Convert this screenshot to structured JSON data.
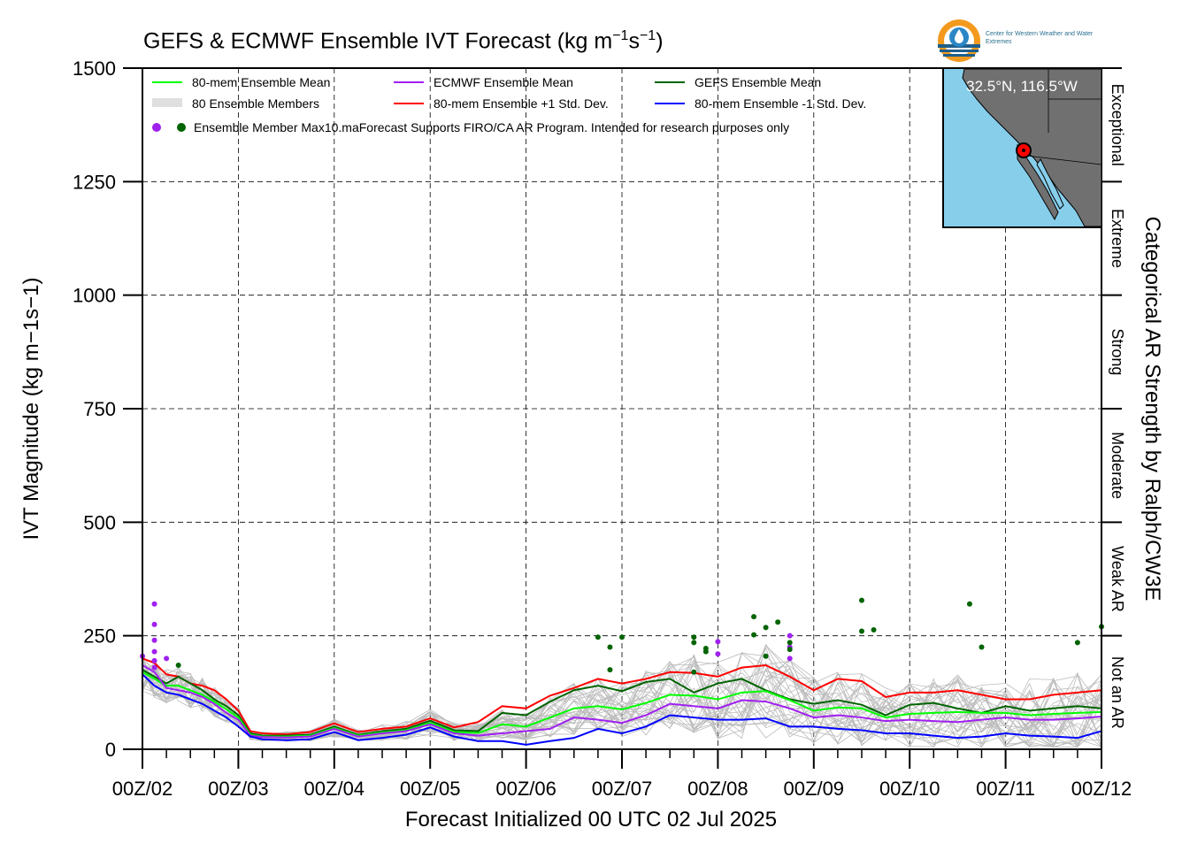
{
  "title_main": "GEFS & ECMWF Ensemble IVT Forecast (kg m",
  "title_sup1": "−1",
  "title_mid": "s",
  "title_sup2": "−1",
  "title_end": ")",
  "ylabel": "IVT Magnitude (kg m−1s−1)",
  "xlabel": "Forecast Initialized 00 UTC 02 Jul 2025",
  "right_label": "Categorical AR Strength by Ralph/CW3E",
  "logo_text": "Center for Western Weather and Water Extremes",
  "inset_location": "32.5°N, 116.5°W",
  "legend": {
    "mean80": "80-mem Ensemble Mean",
    "ecmwf_mean": "ECMWF Ensemble Mean",
    "gefs_mean": "GEFS Ensemble Mean",
    "members": "80 Ensemble Members",
    "plus1": "80-mem Ensemble +1 Std. Dev.",
    "minus1": "80-mem Ensemble -1 Std. Dev.",
    "max_label": "Ensemble Member Max",
    "note": "10.maForecast Supports FIRO/CA AR Program. Intended for research purposes only"
  },
  "colors": {
    "mean80": "#00ff00",
    "ecmwf": "#a020f0",
    "gefs": "#006400",
    "plus1": "#ff0000",
    "minus1": "#0000ff",
    "members": "#bbbbbb",
    "inset_ocean": "#87ceeb",
    "inset_land": "#707070"
  },
  "chart_data": {
    "type": "line",
    "title": "GEFS & ECMWF Ensemble IVT Forecast (kg m−1s−1)",
    "xlabel": "Forecast Initialized 00 UTC 02 Jul 2025",
    "ylabel": "IVT Magnitude (kg m−1s−1)",
    "ylim": [
      0,
      1500
    ],
    "xlim": [
      0,
      10
    ],
    "x_unit": "days since 00Z/02",
    "x_tick_labels": [
      "00Z/02",
      "00Z/03",
      "00Z/04",
      "00Z/05",
      "00Z/06",
      "00Z/07",
      "00Z/08",
      "00Z/09",
      "00Z/10",
      "00Z/11",
      "00Z/12"
    ],
    "y_ticks": [
      0,
      250,
      500,
      750,
      1000,
      1250,
      1500
    ],
    "grid": true,
    "legend_position": "top-left",
    "categories": [
      {
        "name": "Not an AR",
        "range": [
          0,
          250
        ]
      },
      {
        "name": "Weak AR",
        "range": [
          250,
          500
        ]
      },
      {
        "name": "Moderate",
        "range": [
          500,
          750
        ]
      },
      {
        "name": "Strong",
        "range": [
          750,
          1000
        ]
      },
      {
        "name": "Extreme",
        "range": [
          1000,
          1250
        ]
      },
      {
        "name": "Exceptional",
        "range": [
          1250,
          1500
        ]
      }
    ],
    "series": [
      {
        "name": "80-mem Ensemble +1 Std. Dev.",
        "color": "#ff0000",
        "x": [
          0,
          0.125,
          0.25,
          0.375,
          0.5,
          0.625,
          0.75,
          0.875,
          1,
          1.125,
          1.25,
          1.5,
          1.75,
          2,
          2.25,
          2.5,
          2.75,
          3,
          3.25,
          3.5,
          3.75,
          4,
          4.25,
          4.5,
          4.75,
          5,
          5.25,
          5.5,
          5.75,
          6,
          6.25,
          6.5,
          6.75,
          7,
          7.25,
          7.5,
          7.75,
          8,
          8.25,
          8.5,
          8.75,
          9,
          9.25,
          9.5,
          9.75,
          10
        ],
        "y": [
          200,
          190,
          165,
          160,
          145,
          140,
          130,
          110,
          85,
          40,
          35,
          33,
          38,
          57,
          38,
          45,
          50,
          68,
          48,
          60,
          95,
          90,
          118,
          135,
          155,
          145,
          155,
          170,
          168,
          160,
          180,
          185,
          160,
          130,
          155,
          150,
          115,
          125,
          125,
          130,
          120,
          110,
          110,
          120,
          125,
          130
        ]
      },
      {
        "name": "GEFS Ensemble Mean",
        "color": "#006400",
        "x": [
          0,
          0.125,
          0.25,
          0.375,
          0.5,
          0.625,
          0.75,
          0.875,
          1,
          1.125,
          1.25,
          1.5,
          1.75,
          2,
          2.25,
          2.5,
          2.75,
          3,
          3.25,
          3.5,
          3.75,
          4,
          4.25,
          4.5,
          4.75,
          5,
          5.25,
          5.5,
          5.75,
          6,
          6.25,
          6.5,
          6.75,
          7,
          7.25,
          7.5,
          7.75,
          8,
          8.25,
          8.5,
          8.75,
          9,
          9.25,
          9.5,
          9.75,
          10
        ],
        "y": [
          175,
          160,
          145,
          160,
          145,
          130,
          110,
          95,
          75,
          35,
          30,
          30,
          32,
          50,
          32,
          40,
          45,
          63,
          42,
          40,
          80,
          75,
          105,
          130,
          140,
          128,
          148,
          155,
          125,
          145,
          155,
          130,
          110,
          100,
          108,
          98,
          75,
          98,
          102,
          90,
          80,
          95,
          85,
          90,
          95,
          90
        ]
      },
      {
        "name": "80-mem Ensemble Mean",
        "color": "#00ff00",
        "x": [
          0,
          0.125,
          0.25,
          0.375,
          0.5,
          0.625,
          0.75,
          0.875,
          1,
          1.125,
          1.25,
          1.5,
          1.75,
          2,
          2.25,
          2.5,
          2.75,
          3,
          3.25,
          3.5,
          3.75,
          4,
          4.25,
          4.5,
          4.75,
          5,
          5.25,
          5.5,
          5.75,
          6,
          6.25,
          6.5,
          6.75,
          7,
          7.25,
          7.5,
          7.75,
          8,
          8.25,
          8.5,
          8.75,
          9,
          9.25,
          9.5,
          9.75,
          10
        ],
        "y": [
          170,
          155,
          140,
          140,
          130,
          120,
          105,
          88,
          70,
          32,
          28,
          28,
          30,
          47,
          30,
          37,
          42,
          58,
          38,
          36,
          55,
          50,
          70,
          90,
          95,
          88,
          102,
          120,
          118,
          110,
          125,
          128,
          108,
          85,
          92,
          90,
          70,
          78,
          80,
          82,
          80,
          80,
          75,
          78,
          80,
          82
        ]
      },
      {
        "name": "ECMWF Ensemble Mean",
        "color": "#a020f0",
        "x": [
          0,
          0.125,
          0.25,
          0.375,
          0.5,
          0.625,
          0.75,
          0.875,
          1,
          1.125,
          1.25,
          1.5,
          1.75,
          2,
          2.25,
          2.5,
          2.75,
          3,
          3.25,
          3.5,
          3.75,
          4,
          4.25,
          4.5,
          4.75,
          5,
          5.25,
          5.5,
          5.75,
          6,
          6.25,
          6.5,
          6.75,
          7,
          7.25,
          7.5,
          7.75,
          8,
          8.25,
          8.5,
          8.75,
          9,
          9.25,
          9.5,
          9.75,
          10
        ],
        "y": [
          185,
          170,
          135,
          130,
          125,
          115,
          100,
          80,
          65,
          30,
          27,
          26,
          28,
          45,
          28,
          35,
          40,
          55,
          35,
          30,
          35,
          40,
          45,
          70,
          65,
          58,
          75,
          100,
          95,
          90,
          108,
          105,
          90,
          70,
          75,
          70,
          62,
          65,
          62,
          60,
          65,
          70,
          65,
          65,
          68,
          72
        ]
      },
      {
        "name": "80-mem Ensemble -1 Std. Dev.",
        "color": "#0000ff",
        "x": [
          0,
          0.125,
          0.25,
          0.375,
          0.5,
          0.625,
          0.75,
          0.875,
          1,
          1.125,
          1.25,
          1.5,
          1.75,
          2,
          2.25,
          2.5,
          2.75,
          3,
          3.25,
          3.5,
          3.75,
          4,
          4.25,
          4.5,
          4.75,
          5,
          5.25,
          5.5,
          5.75,
          6,
          6.25,
          6.5,
          6.75,
          7,
          7.25,
          7.5,
          7.75,
          8,
          8.25,
          8.5,
          8.75,
          9,
          9.25,
          9.5,
          9.75,
          10
        ],
        "y": [
          165,
          140,
          125,
          120,
          110,
          100,
          85,
          70,
          50,
          28,
          22,
          20,
          22,
          38,
          20,
          25,
          32,
          48,
          28,
          18,
          18,
          10,
          18,
          25,
          45,
          35,
          50,
          75,
          70,
          65,
          65,
          68,
          50,
          50,
          45,
          42,
          35,
          35,
          30,
          25,
          28,
          35,
          30,
          28,
          25,
          40
        ]
      }
    ],
    "ensemble_max_points": {
      "ecmwf": [
        {
          "x": 0.0,
          "y": 205
        },
        {
          "x": 0.125,
          "y": 320
        },
        {
          "x": 0.125,
          "y": 275
        },
        {
          "x": 0.125,
          "y": 240
        },
        {
          "x": 0.125,
          "y": 215
        },
        {
          "x": 0.125,
          "y": 195
        },
        {
          "x": 0.125,
          "y": 180
        },
        {
          "x": 0.25,
          "y": 200
        },
        {
          "x": 6.0,
          "y": 237
        },
        {
          "x": 6.0,
          "y": 210
        },
        {
          "x": 6.75,
          "y": 250
        },
        {
          "x": 6.75,
          "y": 225
        },
        {
          "x": 6.75,
          "y": 200
        }
      ],
      "gefs": [
        {
          "x": 0.375,
          "y": 185
        },
        {
          "x": 4.75,
          "y": 247
        },
        {
          "x": 4.875,
          "y": 225
        },
        {
          "x": 4.875,
          "y": 175
        },
        {
          "x": 5.0,
          "y": 247
        },
        {
          "x": 5.75,
          "y": 247
        },
        {
          "x": 5.75,
          "y": 235
        },
        {
          "x": 5.75,
          "y": 170
        },
        {
          "x": 5.875,
          "y": 222
        },
        {
          "x": 5.875,
          "y": 215
        },
        {
          "x": 6.375,
          "y": 292
        },
        {
          "x": 6.375,
          "y": 252
        },
        {
          "x": 6.5,
          "y": 268
        },
        {
          "x": 6.5,
          "y": 205
        },
        {
          "x": 6.625,
          "y": 280
        },
        {
          "x": 6.75,
          "y": 235
        },
        {
          "x": 6.75,
          "y": 220
        },
        {
          "x": 7.5,
          "y": 328
        },
        {
          "x": 7.5,
          "y": 260
        },
        {
          "x": 7.625,
          "y": 263
        },
        {
          "x": 8.625,
          "y": 320
        },
        {
          "x": 8.75,
          "y": 225
        },
        {
          "x": 9.75,
          "y": 235
        },
        {
          "x": 10.0,
          "y": 270
        }
      ]
    }
  }
}
